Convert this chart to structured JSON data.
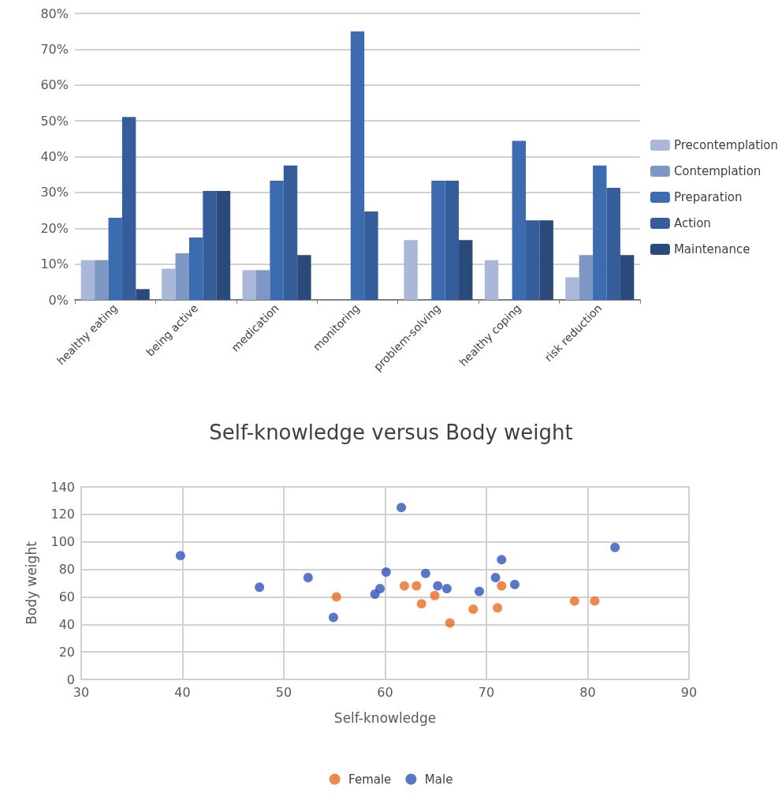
{
  "chart_data": [
    {
      "type": "bar",
      "categories": [
        "healthy eating",
        "being active",
        "medication",
        "monitoring",
        "problem-solving",
        "healthy coping",
        "risk reduction"
      ],
      "series": [
        {
          "name": "Precontemplation",
          "color": "#a9b8d9",
          "values": [
            11.1,
            8.7,
            8.3,
            0,
            16.7,
            11.1,
            6.3
          ]
        },
        {
          "name": "Contemplation",
          "color": "#7f97c5",
          "values": [
            11.1,
            13,
            8.3,
            0,
            0,
            0,
            12.5
          ]
        },
        {
          "name": "Preparation",
          "color": "#3d6bb0",
          "values": [
            22.9,
            17.4,
            33.3,
            75,
            33.3,
            44.4,
            37.5
          ]
        },
        {
          "name": "Action",
          "color": "#345d99",
          "values": [
            51.1,
            30.4,
            37.5,
            24.7,
            33.3,
            22.2,
            31.3
          ]
        },
        {
          "name": "Maintenance",
          "color": "#2a4a7c",
          "values": [
            3,
            30.4,
            12.5,
            0,
            16.7,
            22.2,
            12.5
          ]
        }
      ],
      "ylim": [
        0,
        80
      ],
      "yticks": [
        {
          "value": 0,
          "label": "0%"
        },
        {
          "value": 10,
          "label": "10%"
        },
        {
          "value": 20,
          "label": "20%"
        },
        {
          "value": 30,
          "label": "30%"
        },
        {
          "value": 40,
          "label": "40%"
        },
        {
          "value": 50,
          "label": "50%"
        },
        {
          "value": 60,
          "label": "60%"
        },
        {
          "value": 70,
          "label": "70%"
        },
        {
          "value": 80,
          "label": "80%"
        }
      ],
      "grid": "y",
      "legend": "right"
    },
    {
      "type": "scatter",
      "title": "Self-knowledge versus Body weight",
      "xlabel": "Self-knowledge",
      "ylabel": "Body weight",
      "series": [
        {
          "name": "Female",
          "color": "#eb6a1f",
          "x": [
            55.2,
            61.9,
            63.1,
            63.6,
            64.9,
            66.4,
            68.7,
            71.1,
            71.5,
            78.7,
            80.7
          ],
          "values": [
            60,
            68,
            68,
            55,
            61,
            41,
            51,
            52,
            68,
            57,
            57
          ]
        },
        {
          "name": "Male",
          "color": "#2f54bd",
          "x": [
            39.8,
            47.6,
            52.4,
            54.9,
            59,
            59.5,
            60.1,
            61.6,
            64,
            65.2,
            66.1,
            69.3,
            70.9,
            71.5,
            72.8,
            82.7
          ],
          "values": [
            90,
            67,
            74,
            45,
            62,
            66,
            78,
            125,
            77,
            68,
            66,
            64,
            74,
            87,
            69,
            96
          ]
        }
      ],
      "xlim": [
        30,
        90
      ],
      "xticks": [
        30,
        40,
        50,
        60,
        70,
        80,
        90
      ],
      "ylim": [
        0,
        140
      ],
      "yticks": [
        0,
        20,
        40,
        60,
        80,
        100,
        120,
        140
      ],
      "grid": true,
      "legend": "bottom",
      "marker": "circle"
    }
  ]
}
